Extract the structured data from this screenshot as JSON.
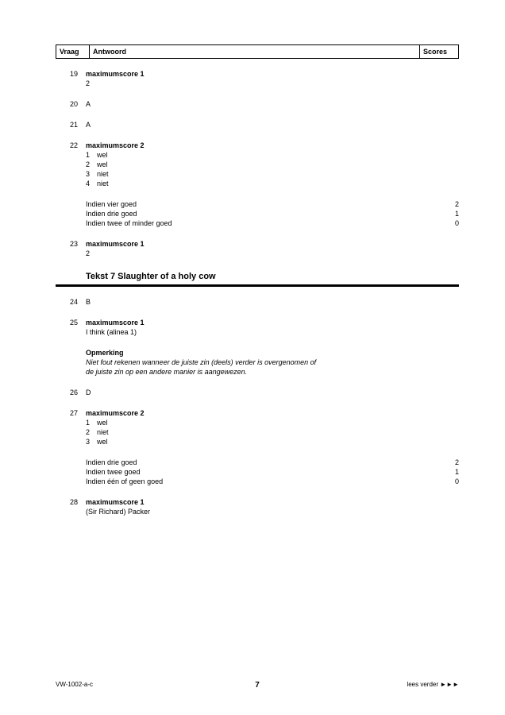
{
  "header": {
    "col1": "Vraag",
    "col2": "Antwoord",
    "col3": "Scores"
  },
  "q19": {
    "num": "19",
    "label": "maximumscore 1",
    "line2": "2"
  },
  "q20": {
    "num": "20",
    "answer": "A"
  },
  "q21": {
    "num": "21",
    "answer": "A"
  },
  "q22": {
    "num": "22",
    "label": "maximumscore 2",
    "items": [
      {
        "n": "1",
        "v": "wel"
      },
      {
        "n": "2",
        "v": "wel"
      },
      {
        "n": "3",
        "v": "niet"
      },
      {
        "n": "4",
        "v": "niet"
      }
    ],
    "scoring": [
      {
        "t": "Indien vier goed",
        "s": "2"
      },
      {
        "t": "Indien drie goed",
        "s": "1"
      },
      {
        "t": "Indien twee of minder goed",
        "s": "0"
      }
    ]
  },
  "q23": {
    "num": "23",
    "label": "maximumscore 1",
    "line2": "2"
  },
  "section": {
    "title": "Tekst 7  Slaughter of a holy cow"
  },
  "q24": {
    "num": "24",
    "answer": "B"
  },
  "q25": {
    "num": "25",
    "label": "maximumscore 1",
    "line2": "I think (alinea 1)",
    "note_label": "Opmerking",
    "note1": "Niet fout rekenen wanneer de juiste zin (deels) verder is overgenomen of",
    "note2": "de juiste zin op een andere manier is aangewezen."
  },
  "q26": {
    "num": "26",
    "answer": "D"
  },
  "q27": {
    "num": "27",
    "label": "maximumscore 2",
    "items": [
      {
        "n": "1",
        "v": "wel"
      },
      {
        "n": "2",
        "v": "niet"
      },
      {
        "n": "3",
        "v": "wel"
      }
    ],
    "scoring": [
      {
        "t": "Indien drie goed",
        "s": "2"
      },
      {
        "t": "Indien twee goed",
        "s": "1"
      },
      {
        "t": "Indien één of geen goed",
        "s": "0"
      }
    ]
  },
  "q28": {
    "num": "28",
    "label": "maximumscore 1",
    "line2": "(Sir Richard) Packer"
  },
  "footer": {
    "left": "VW-1002-a-c",
    "mid": "7",
    "right": "lees verder ►►►"
  }
}
